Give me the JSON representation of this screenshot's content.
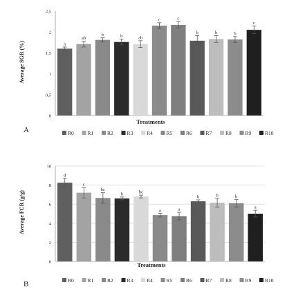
{
  "colors": {
    "R0": "#5f5f5f",
    "R1": "#a3a3a3",
    "R2": "#8a8a8a",
    "R3": "#2b2b2b",
    "R4": "#d9d9d9",
    "R5": "#8a8a8a",
    "R6": "#7f7f7f",
    "R7": "#595959",
    "R8": "#bdbdbd",
    "R9": "#8c8c8c",
    "R10": "#1f1f1f",
    "axis": "#999999",
    "grid": "#d9d9d9",
    "error_bar": "#555555"
  },
  "chart_data": [
    {
      "type": "bar",
      "panel_label": "A",
      "categories": [
        "R0",
        "R1",
        "R2",
        "R3",
        "R4",
        "R5",
        "R6",
        "R7",
        "R8",
        "R9",
        "R10"
      ],
      "values": [
        1.6,
        1.71,
        1.81,
        1.76,
        1.71,
        2.15,
        2.17,
        1.79,
        1.83,
        1.82,
        2.05
      ],
      "error": [
        0.04,
        0.07,
        0.05,
        0.07,
        0.08,
        0.07,
        0.08,
        0.12,
        0.08,
        0.07,
        0.09
      ],
      "letters": [
        "a",
        "ab",
        "b",
        "b",
        "ab",
        "c",
        "c",
        "b",
        "b",
        "b",
        "c"
      ],
      "ylim": [
        0,
        2.5
      ],
      "yticks": [
        "0",
        "0,5",
        "1",
        "1,5",
        "2",
        "2,5"
      ],
      "ylabel": "Average SGR (%)",
      "xlabel": "Treatments",
      "grid": false,
      "legend": "bottom"
    },
    {
      "type": "bar",
      "panel_label": "B",
      "categories": [
        "R0",
        "R1",
        "R2",
        "R3",
        "R4",
        "R5",
        "R6",
        "R7",
        "R8",
        "R9",
        "R10"
      ],
      "values": [
        8.25,
        7.2,
        6.65,
        6.6,
        6.8,
        4.85,
        4.75,
        6.3,
        6.15,
        6.1,
        5.0
      ],
      "error": [
        0.45,
        0.55,
        0.55,
        0.15,
        0.15,
        0.2,
        0.4,
        0.15,
        0.45,
        0.4,
        0.35
      ],
      "letters": [
        "d",
        "c",
        "bc",
        "b",
        "bc",
        "a",
        "a",
        "b",
        "b",
        "b",
        "a"
      ],
      "ylim": [
        0,
        10
      ],
      "yticks": [
        "0",
        "2",
        "4",
        "6",
        "8",
        "10"
      ],
      "ylabel": "Average FCR (g/g)",
      "xlabel": "Treatments",
      "grid": true,
      "legend": "bottom"
    }
  ]
}
